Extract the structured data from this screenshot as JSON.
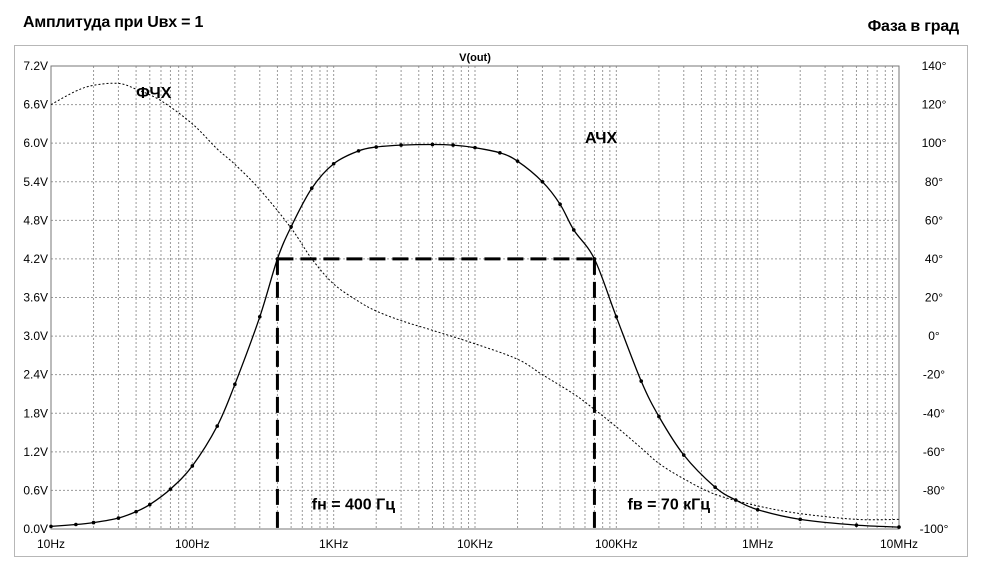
{
  "header": {
    "left_title": "Амплитуда при Uвх = 1",
    "right_title": "Фаза в град"
  },
  "chart_data": {
    "type": "line",
    "title": "V(out)",
    "x_scale": "log",
    "xlim": [
      10,
      10000000
    ],
    "ylim_left": [
      0,
      7.2
    ],
    "ylim_right": [
      -100,
      140
    ],
    "x_tick_labels": [
      "10Hz",
      "100Hz",
      "1KHz",
      "10KHz",
      "100KHz",
      "1MHz",
      "10MHz"
    ],
    "x_tick_values": [
      10,
      100,
      1000,
      10000,
      100000,
      1000000,
      10000000
    ],
    "y_left_tick_labels": [
      "0.0V",
      "0.6V",
      "1.2V",
      "1.8V",
      "2.4V",
      "3.0V",
      "3.6V",
      "4.2V",
      "4.8V",
      "5.4V",
      "6.0V",
      "6.6V",
      "7.2V"
    ],
    "y_left_tick_values": [
      0,
      0.6,
      1.2,
      1.8,
      2.4,
      3.0,
      3.6,
      4.2,
      4.8,
      5.4,
      6.0,
      6.6,
      7.2
    ],
    "y_right_tick_labels": [
      "-100°",
      "-80°",
      "-60°",
      "-40°",
      "-20°",
      "0°",
      "20°",
      "40°",
      "60°",
      "80°",
      "100°",
      "120°",
      "140°"
    ],
    "y_right_tick_values": [
      -100,
      -80,
      -60,
      -40,
      -20,
      0,
      20,
      40,
      60,
      80,
      100,
      120,
      140
    ],
    "grid": true,
    "series": [
      {
        "name": "АЧХ",
        "axis": "left",
        "style": "solid-with-markers",
        "color": "#000000",
        "x": [
          10,
          15,
          20,
          30,
          40,
          50,
          70,
          100,
          150,
          200,
          300,
          400,
          500,
          700,
          1000,
          1500,
          2000,
          3000,
          5000,
          7000,
          10000,
          15000,
          20000,
          30000,
          40000,
          50000,
          70000,
          100000,
          150000,
          200000,
          300000,
          500000,
          700000,
          1000000,
          2000000,
          5000000,
          10000000
        ],
        "y": [
          0.04,
          0.07,
          0.1,
          0.17,
          0.27,
          0.38,
          0.62,
          0.98,
          1.6,
          2.25,
          3.3,
          4.2,
          4.7,
          5.3,
          5.68,
          5.88,
          5.94,
          5.97,
          5.98,
          5.97,
          5.93,
          5.85,
          5.72,
          5.4,
          5.05,
          4.65,
          4.2,
          3.3,
          2.3,
          1.75,
          1.15,
          0.65,
          0.45,
          0.3,
          0.15,
          0.06,
          0.03
        ]
      },
      {
        "name": "ФЧХ",
        "axis": "right",
        "style": "dotted",
        "color": "#000000",
        "x": [
          10,
          15,
          20,
          30,
          40,
          60,
          100,
          150,
          200,
          300,
          500,
          700,
          1000,
          1500,
          2000,
          3000,
          5000,
          10000,
          20000,
          30000,
          50000,
          70000,
          100000,
          150000,
          200000,
          300000,
          500000,
          1000000,
          2000000,
          5000000,
          10000000
        ],
        "y": [
          120,
          127,
          130,
          131,
          128,
          122,
          110,
          97,
          89,
          76,
          56,
          40,
          27,
          18,
          13,
          8,
          3,
          -4,
          -12,
          -20,
          -30,
          -38,
          -47,
          -58,
          -66,
          -74,
          -82,
          -88,
          -92,
          -95,
          -95
        ]
      }
    ],
    "annotations": [
      {
        "text": "ФЧХ",
        "x": 40,
        "y": 6.7
      },
      {
        "text": "АЧХ",
        "x": 60000,
        "y": 6.0
      },
      {
        "text": "fн = 400 Гц",
        "x": 700,
        "y": 0.3
      },
      {
        "text": "fв = 70 кГц",
        "x": 120000,
        "y": 0.3
      }
    ],
    "cutoff_markers": {
      "level": 4.2,
      "f_low": 400,
      "f_high": 70000,
      "style": "dashed"
    }
  }
}
